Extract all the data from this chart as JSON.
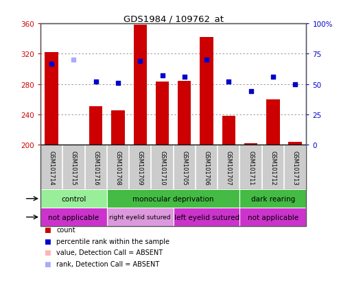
{
  "title": "GDS1984 / 109762_at",
  "samples": [
    "GSM101714",
    "GSM101715",
    "GSM101716",
    "GSM101708",
    "GSM101709",
    "GSM101710",
    "GSM101705",
    "GSM101706",
    "GSM101707",
    "GSM101711",
    "GSM101712",
    "GSM101713"
  ],
  "count_values": [
    322,
    200,
    251,
    245,
    358,
    283,
    284,
    342,
    238,
    202,
    260,
    204
  ],
  "rank_values": [
    67,
    70,
    52,
    51,
    69,
    57,
    56,
    70,
    52,
    44,
    56,
    50
  ],
  "absent_count": [
    false,
    true,
    false,
    false,
    false,
    false,
    false,
    false,
    false,
    false,
    false,
    false
  ],
  "absent_rank": [
    false,
    true,
    false,
    false,
    false,
    false,
    false,
    false,
    false,
    false,
    false,
    false
  ],
  "ylim_left": [
    200,
    360
  ],
  "ylim_right": [
    0,
    100
  ],
  "yticks_left": [
    200,
    240,
    280,
    320,
    360
  ],
  "yticks_right": [
    0,
    25,
    50,
    75,
    100
  ],
  "bar_color": "#cc0000",
  "bar_color_absent": "#ffb3b3",
  "dot_color": "#0000cc",
  "dot_color_absent": "#aaaaff",
  "left_axis_color": "#cc0000",
  "right_axis_color": "#0000cc",
  "protocol_groups": [
    {
      "label": "control",
      "start": 0,
      "end": 3
    },
    {
      "label": "monocular deprivation",
      "start": 3,
      "end": 9
    },
    {
      "label": "dark rearing",
      "start": 9,
      "end": 12
    }
  ],
  "other_groups": [
    {
      "label": "not applicable",
      "start": 0,
      "end": 3,
      "light": false
    },
    {
      "label": "right eyelid sutured",
      "start": 3,
      "end": 6,
      "light": true
    },
    {
      "label": "left eyelid sutured",
      "start": 6,
      "end": 9,
      "light": false
    },
    {
      "label": "not applicable",
      "start": 9,
      "end": 12,
      "light": false
    }
  ],
  "protocol_color_light": "#99ee99",
  "protocol_color_dark": "#44bb44",
  "other_color_dark": "#cc33cc",
  "other_color_light": "#dd99dd",
  "grid_color": "#888888",
  "bg_color": "#ffffff",
  "label_bg_color": "#cccccc",
  "cell_border_color": "#ffffff",
  "legend_items": [
    {
      "color": "#cc0000",
      "label": "count"
    },
    {
      "color": "#0000cc",
      "label": "percentile rank within the sample"
    },
    {
      "color": "#ffb3b3",
      "label": "value, Detection Call = ABSENT"
    },
    {
      "color": "#aaaaff",
      "label": "rank, Detection Call = ABSENT"
    }
  ]
}
